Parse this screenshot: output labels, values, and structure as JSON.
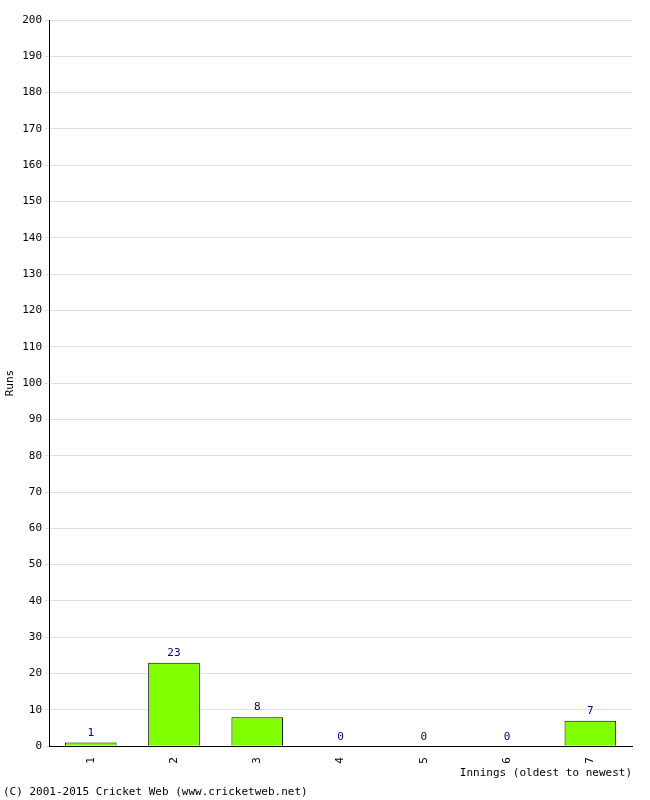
{
  "chart_data": {
    "type": "bar",
    "x_label": "Innings (oldest to newest)",
    "y_label": "Runs",
    "annotations": [
      "(C) 2001-2015 Cricket Web (www.cricketweb.net)"
    ],
    "categories": [
      "1",
      "2",
      "3",
      "4",
      "5",
      "6",
      "7"
    ],
    "values": [
      1,
      23,
      8,
      0,
      0,
      0,
      7
    ],
    "color": "#80ff00",
    "ylim": [
      0,
      200
    ],
    "yticks": [
      0,
      10,
      20,
      30,
      40,
      50,
      60,
      70,
      80,
      90,
      100,
      110,
      120,
      130,
      140,
      150,
      160,
      170,
      180,
      190,
      200
    ],
    "grid": true,
    "data_labels": true
  }
}
